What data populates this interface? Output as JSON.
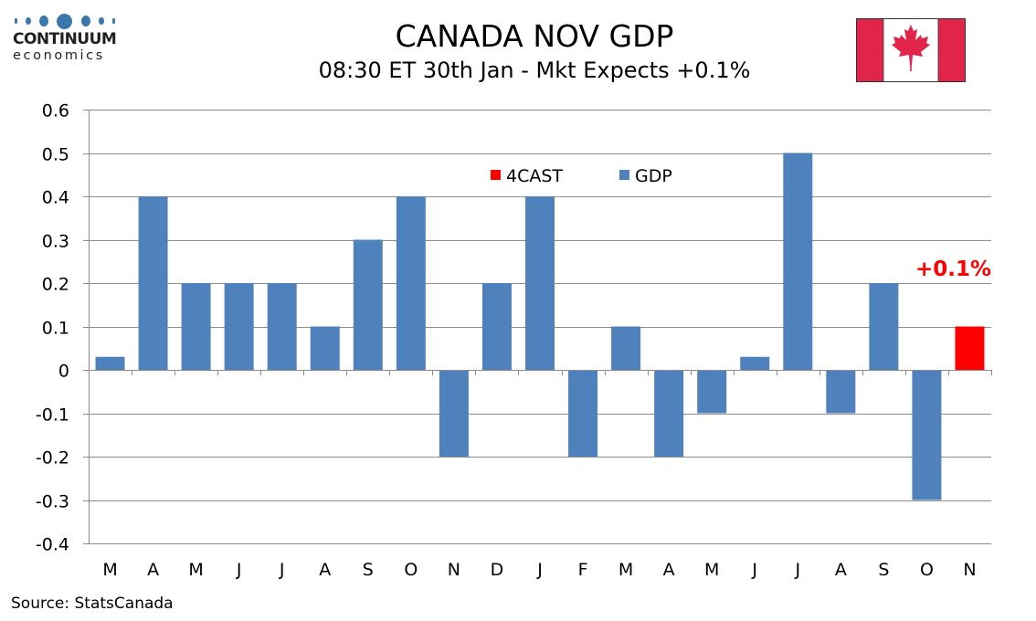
{
  "logo": {
    "name": "CONTINUUM",
    "sub": "economics",
    "color": "#3a77ad"
  },
  "header": {
    "title": "CANADA NOV GDP",
    "subtitle": "08:30 ET 30th Jan - Mkt Expects +0.1%",
    "flag": "canada-flag"
  },
  "footer": {
    "source": "Source: StatsCanada"
  },
  "chart_data": {
    "type": "bar",
    "title": "CANADA NOV GDP",
    "subtitle": "08:30 ET 30th Jan - Mkt Expects +0.1%",
    "xlabel": "",
    "ylabel": "",
    "ylim": [
      -0.4,
      0.6
    ],
    "yticks": [
      0.6,
      0.5,
      0.4,
      0.3,
      0.2,
      0.1,
      0,
      -0.1,
      -0.2,
      -0.3,
      -0.4
    ],
    "ytick_labels": [
      "0.6",
      "0.5",
      "0.4",
      "0.3",
      "0.2",
      "0.1",
      "0",
      "-0.1",
      "-0.2",
      "-0.3",
      "-0.4"
    ],
    "grid": true,
    "categories": [
      "M",
      "A",
      "M",
      "J",
      "J",
      "A",
      "S",
      "O",
      "N",
      "D",
      "J",
      "F",
      "M",
      "A",
      "M",
      "J",
      "J",
      "A",
      "S",
      "O",
      "N"
    ],
    "series": [
      {
        "name": "GDP",
        "color": "#4f81bd",
        "values": [
          0.03,
          0.4,
          0.2,
          0.2,
          0.2,
          0.1,
          0.3,
          0.4,
          -0.2,
          0.2,
          0.4,
          -0.2,
          0.1,
          -0.2,
          -0.1,
          0.03,
          0.5,
          -0.1,
          0.2,
          -0.3,
          null
        ]
      },
      {
        "name": "4CAST",
        "color": "#ff0000",
        "values": [
          null,
          null,
          null,
          null,
          null,
          null,
          null,
          null,
          null,
          null,
          null,
          null,
          null,
          null,
          null,
          null,
          null,
          null,
          null,
          null,
          0.1
        ]
      }
    ],
    "legend": {
      "placement": "top-center",
      "entries": [
        {
          "label": "4CAST",
          "color": "#ff0000"
        },
        {
          "label": "GDP",
          "color": "#4f81bd"
        }
      ]
    },
    "annotations": [
      {
        "text": "+0.1%",
        "category_index": 20,
        "color": "#ff0000"
      }
    ]
  }
}
